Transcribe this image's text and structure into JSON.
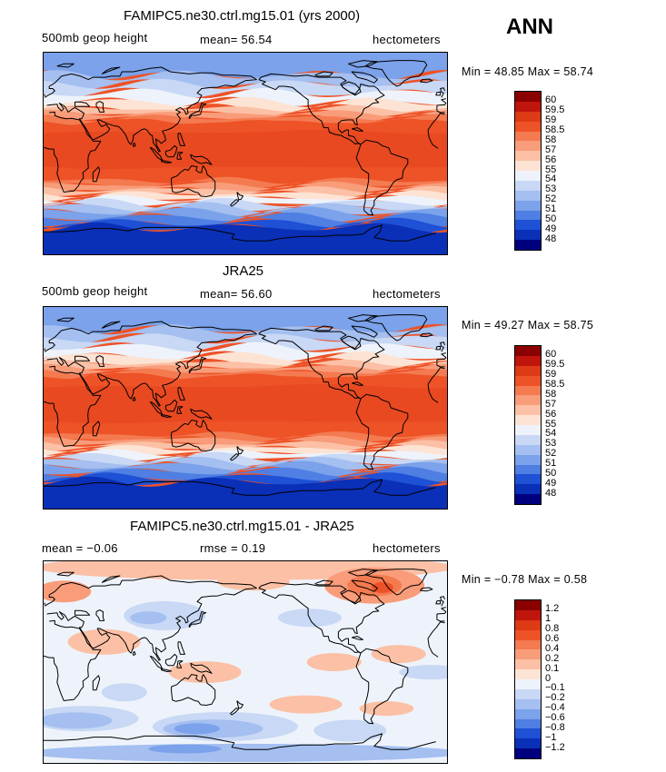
{
  "season": "ANN",
  "panels": [
    {
      "title": "FAMIPC5.ne30.ctrl.mg15.01 (yrs 2000)",
      "left_label": "500mb geop height",
      "mid_label": "mean=  56.54",
      "right_label": "hectometers",
      "minmax": "Min =  48.85 Max =  58.74",
      "type": "field"
    },
    {
      "title": "JRA25",
      "left_label": "500mb geop height",
      "mid_label": "mean=  56.60",
      "right_label": "hectometers",
      "minmax": "Min =  49.27 Max =  58.75",
      "type": "field"
    },
    {
      "title": "FAMIPC5.ne30.ctrl.mg15.01 - JRA25",
      "left_label": "mean =  −0.06",
      "mid_label": "rmse =   0.19",
      "right_label": "hectometers",
      "minmax": "Min =  −0.78 Max =   0.58",
      "type": "diff"
    }
  ],
  "colorbar_field": {
    "labels": [
      "60",
      "59.5",
      "59",
      "58.5",
      "58",
      "57",
      "56",
      "55",
      "54",
      "53",
      "52",
      "51",
      "50",
      "49",
      "48"
    ],
    "colors": [
      "#8b0000",
      "#c0150c",
      "#dd3a16",
      "#ee5227",
      "#f47a50",
      "#f89c7a",
      "#fbc0a5",
      "#fde3d4",
      "#eef3fb",
      "#c8d8f5",
      "#a4bff0",
      "#7ba2ea",
      "#4f7fe3",
      "#1f51d6",
      "#0a30b8",
      "#00007f"
    ]
  },
  "colorbar_diff": {
    "labels": [
      "1.2",
      "1",
      "0.8",
      "0.6",
      "0.4",
      "0.2",
      "0.1",
      "0",
      "−0.1",
      "−0.2",
      "−0.4",
      "−0.6",
      "−0.8",
      "−1",
      "−1.2"
    ],
    "colors": [
      "#8b0000",
      "#c0150c",
      "#dd3a16",
      "#ee5227",
      "#f47a50",
      "#f89c7a",
      "#fbc0a5",
      "#fde3d4",
      "#eef3fb",
      "#c8d8f5",
      "#a4bff0",
      "#7ba2ea",
      "#4f7fe3",
      "#1f51d6",
      "#0a30b8",
      "#00007f"
    ]
  }
}
